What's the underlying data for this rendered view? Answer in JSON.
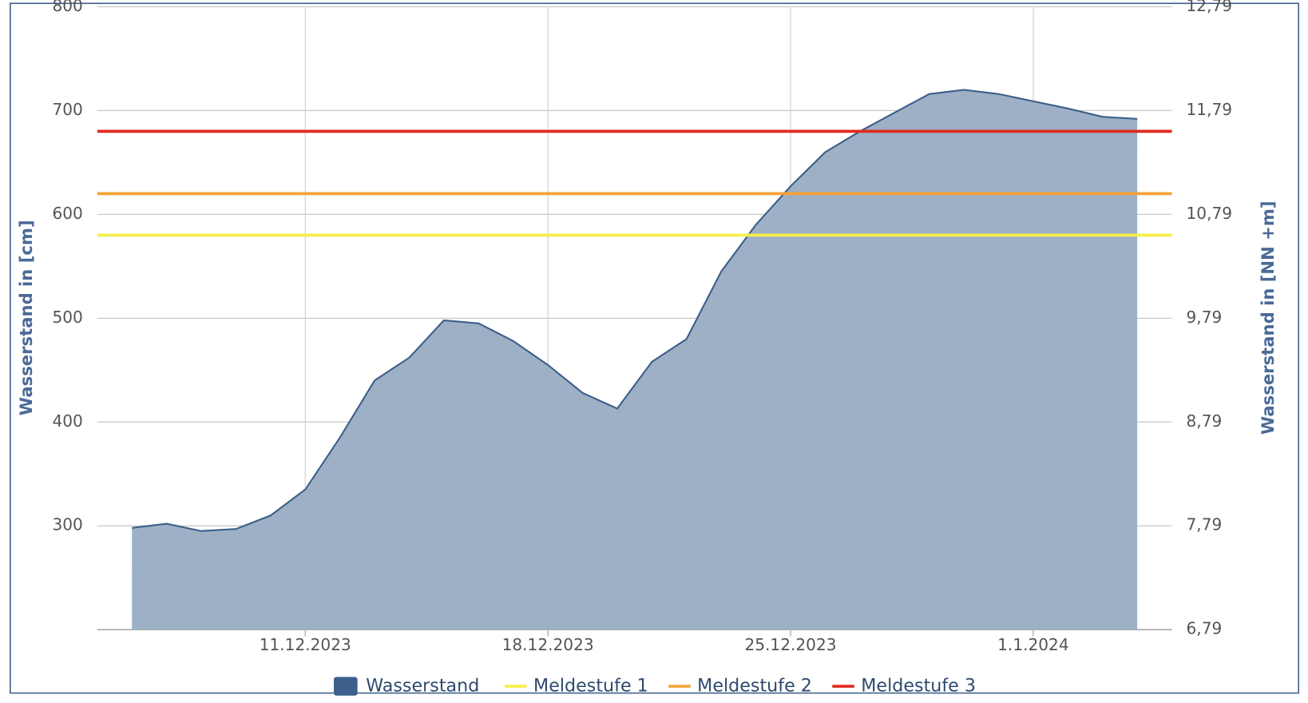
{
  "chart_data": {
    "type": "area",
    "x": [
      "6.12.2023",
      "7.12.2023",
      "8.12.2023",
      "9.12.2023",
      "10.12.2023",
      "11.12.2023",
      "12.12.2023",
      "13.12.2023",
      "14.12.2023",
      "15.12.2023",
      "16.12.2023",
      "17.12.2023",
      "18.12.2023",
      "19.12.2023",
      "20.12.2023",
      "21.12.2023",
      "22.12.2023",
      "23.12.2023",
      "24.12.2023",
      "25.12.2023",
      "26.12.2023",
      "27.12.2023",
      "28.12.2023",
      "29.12.2023",
      "30.12.2023",
      "31.12.2023",
      "1.1.2024",
      "2.1.2024",
      "3.1.2024",
      "4.1.2024"
    ],
    "series": [
      {
        "name": "Wasserstand",
        "color": "#3d5f8a",
        "fill": "#9db0c6",
        "values": [
          298,
          302,
          295,
          297,
          310,
          335,
          385,
          440,
          462,
          498,
          495,
          478,
          455,
          428,
          413,
          458,
          480,
          545,
          590,
          627,
          660,
          680,
          698,
          716,
          720,
          716,
          709,
          702,
          694,
          692
        ]
      }
    ],
    "levels": [
      {
        "name": "Meldestufe 1",
        "color": "#f5ef4a",
        "value": 580
      },
      {
        "name": "Meldestufe 2",
        "color": "#f3a338",
        "value": 620
      },
      {
        "name": "Meldestufe 3",
        "color": "#e02a1f",
        "value": 680
      }
    ],
    "xlim": [
      "5.12.2023",
      "5.1.2024"
    ],
    "xticks": [
      "11.12.2023",
      "18.12.2023",
      "25.12.2023",
      "1.1.2024"
    ],
    "ylim": [
      200,
      800
    ],
    "yticks": [
      300,
      400,
      500,
      600,
      700,
      800
    ],
    "y2lim": [
      6.79,
      12.79
    ],
    "y2ticks": [
      {
        "value": 6.79,
        "label": "6,79"
      },
      {
        "value": 7.79,
        "label": "7,79"
      },
      {
        "value": 8.79,
        "label": "8,79"
      },
      {
        "value": 9.79,
        "label": "9,79"
      },
      {
        "value": 10.79,
        "label": "10,79"
      },
      {
        "value": 11.79,
        "label": "11,79"
      },
      {
        "value": 12.79,
        "label": "12,79"
      }
    ],
    "ylabel": "Wasserstand in [cm]",
    "y2label": "Wasserstand in [NN +m]",
    "grid": true
  }
}
